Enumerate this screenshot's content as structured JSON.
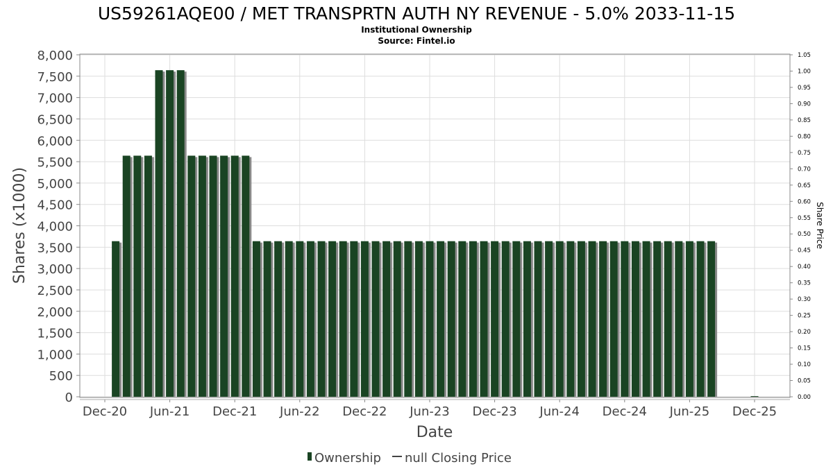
{
  "chart_data": {
    "type": "bar",
    "title": "US59261AQE00 / MET TRANSPRTN AUTH NY REVENUE - 5.0% 2033-11-15",
    "subtitle": "Institutional Ownership",
    "source": "Source: Fintel.io",
    "xlabel": "Date",
    "ylabel": "Shares (x1000)",
    "y2label": "Share Price",
    "ylim": [
      0,
      8000
    ],
    "y2lim": [
      0,
      1.05
    ],
    "yticks": [
      "0",
      "500",
      "1,000",
      "1,500",
      "2,000",
      "2,500",
      "3,000",
      "3,500",
      "4,000",
      "4,500",
      "5,000",
      "5,500",
      "6,000",
      "6,500",
      "7,000",
      "7,500",
      "8,000"
    ],
    "y2ticks": [
      "0.00",
      "0.05",
      "0.10",
      "0.15",
      "0.20",
      "0.25",
      "0.30",
      "0.35",
      "0.40",
      "0.45",
      "0.50",
      "0.55",
      "0.60",
      "0.65",
      "0.70",
      "0.75",
      "0.80",
      "0.85",
      "0.90",
      "0.95",
      "1.00",
      "1.05"
    ],
    "xticks": [
      "Dec-20",
      "Jun-21",
      "Dec-21",
      "Jun-22",
      "Dec-22",
      "Jun-23",
      "Dec-23",
      "Jun-24",
      "Dec-24",
      "Jun-25",
      "Dec-25"
    ],
    "grid": true,
    "bar_color": "#1a4423",
    "series": [
      {
        "name": "Ownership",
        "start_month": "2021-01",
        "values": [
          3640,
          5640,
          5640,
          5640,
          7640,
          7640,
          7640,
          5640,
          5640,
          5640,
          5640,
          5640,
          5640,
          3640,
          3640,
          3640,
          3640,
          3640,
          3640,
          3640,
          3640,
          3640,
          3640,
          3640,
          3640,
          3640,
          3640,
          3640,
          3640,
          3640,
          3640,
          3640,
          3640,
          3640,
          3640,
          3640,
          3640,
          3640,
          3640,
          3640,
          3640,
          3640,
          3640,
          3640,
          3640,
          3640,
          3640,
          3640,
          3640,
          3640,
          3640,
          3640,
          3640,
          3640,
          3640,
          3640
        ]
      },
      {
        "name": "Ownership (Dec-25)",
        "month": "2025-12",
        "value": 15
      }
    ],
    "legend": [
      {
        "label": "Ownership"
      },
      {
        "label": "null Closing Price"
      }
    ],
    "legend_placement": "bottom"
  }
}
